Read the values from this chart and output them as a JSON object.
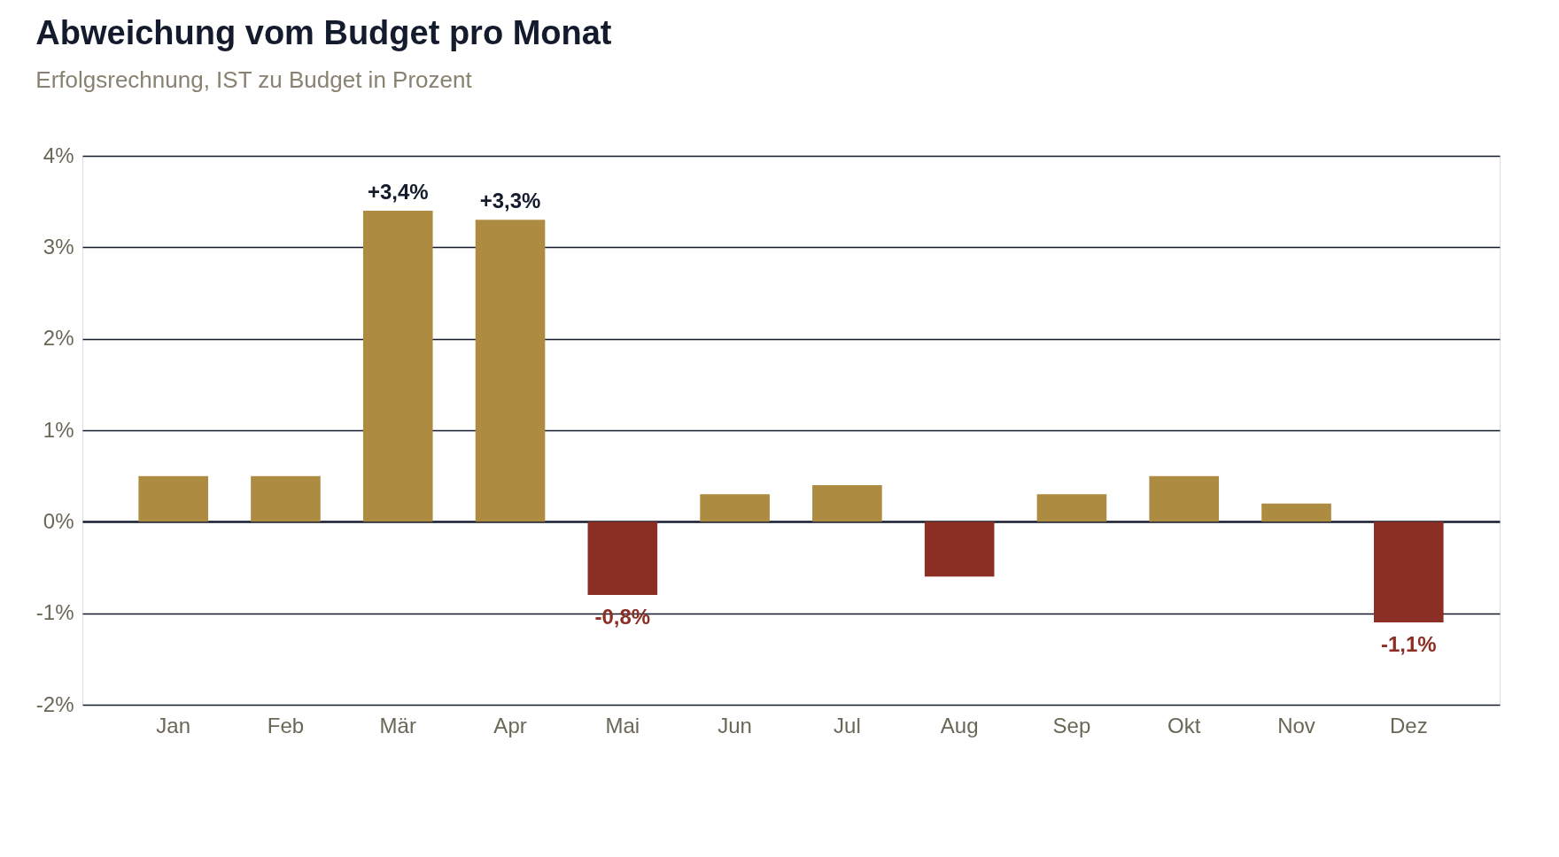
{
  "chart_data": {
    "type": "bar",
    "title": "Abweichung vom Budget pro Monat",
    "subtitle": "Erfolgsrechnung, IST zu Budget in Prozent",
    "categories": [
      "Jan",
      "Feb",
      "Mär",
      "Apr",
      "Mai",
      "Jun",
      "Jul",
      "Aug",
      "Sep",
      "Okt",
      "Nov",
      "Dez"
    ],
    "values": [
      0.5,
      0.5,
      3.4,
      3.3,
      -0.8,
      0.3,
      0.4,
      -0.6,
      0.3,
      0.5,
      0.2,
      -1.1
    ],
    "colors": [
      "#ad8b41",
      "#ad8b41",
      "#ad8b41",
      "#ad8b41",
      "#8b2e24",
      "#ad8b41",
      "#ad8b41",
      "#8b2e24",
      "#ad8b41",
      "#ad8b41",
      "#ad8b41",
      "#8b2e24"
    ],
    "value_labels": [
      null,
      null,
      "+3,4%",
      "+3,3%",
      "-0,8%",
      null,
      null,
      null,
      null,
      null,
      null,
      "-1,1%"
    ],
    "ylim": [
      -2,
      4
    ],
    "yticks": [
      {
        "value": -2,
        "label": "-2%"
      },
      {
        "value": -1,
        "label": "-1%"
      },
      {
        "value": 0,
        "label": "0%"
      },
      {
        "value": 1,
        "label": "1%"
      },
      {
        "value": 2,
        "label": "2%"
      },
      {
        "value": 3,
        "label": "3%"
      },
      {
        "value": 4,
        "label": "4%"
      }
    ],
    "grid": "y"
  }
}
